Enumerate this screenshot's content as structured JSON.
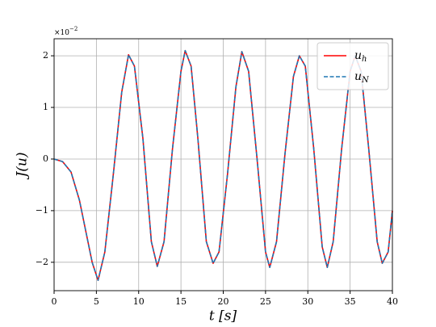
{
  "chart_data": {
    "type": "line",
    "x_label": "t [s]",
    "y_label": "J(u)",
    "y_offset_text": {
      "base": "×10",
      "exponent": "−2"
    },
    "x": [
      0,
      1,
      2,
      3,
      4,
      4.5,
      5.2,
      6,
      7,
      8,
      8.8,
      9.5,
      10.5,
      11.5,
      12.2,
      13,
      14,
      15,
      15.5,
      16.2,
      17,
      18,
      18.8,
      19.5,
      20.5,
      21.5,
      22.2,
      23,
      24,
      25,
      25.5,
      26.3,
      27.3,
      28.3,
      29,
      29.7,
      30.7,
      31.7,
      32.3,
      33,
      34,
      35,
      35.6,
      36.3,
      37.2,
      38.2,
      38.8,
      39.5,
      40
    ],
    "series": [
      {
        "name": "u_h",
        "color": "#ff0000",
        "dashed": false,
        "values": [
          0,
          -0.05,
          -0.25,
          -0.8,
          -1.6,
          -2.0,
          -2.35,
          -1.8,
          -0.3,
          1.3,
          2.02,
          1.8,
          0.4,
          -1.6,
          -2.08,
          -1.6,
          0.2,
          1.7,
          2.1,
          1.8,
          0.4,
          -1.6,
          -2.02,
          -1.8,
          -0.3,
          1.4,
          2.08,
          1.7,
          0.0,
          -1.8,
          -2.1,
          -1.6,
          0.1,
          1.6,
          2.0,
          1.8,
          0.2,
          -1.7,
          -2.1,
          -1.6,
          0.2,
          1.7,
          2.0,
          1.7,
          0.2,
          -1.6,
          -2.02,
          -1.8,
          -1.0
        ]
      },
      {
        "name": "u_N",
        "color": "#1f77b4",
        "dashed": true,
        "values": [
          0,
          -0.05,
          -0.25,
          -0.8,
          -1.6,
          -2.0,
          -2.35,
          -1.8,
          -0.3,
          1.3,
          2.02,
          1.8,
          0.4,
          -1.6,
          -2.08,
          -1.6,
          0.2,
          1.7,
          2.1,
          1.8,
          0.4,
          -1.6,
          -2.02,
          -1.8,
          -0.3,
          1.4,
          2.08,
          1.7,
          0.0,
          -1.8,
          -2.1,
          -1.6,
          0.1,
          1.6,
          2.0,
          1.8,
          0.2,
          -1.7,
          -2.1,
          -1.6,
          0.2,
          1.7,
          2.0,
          1.7,
          0.2,
          -1.6,
          -2.02,
          -1.8,
          -1.0
        ]
      }
    ],
    "xlim": [
      0,
      40
    ],
    "xticks": [
      0,
      5,
      10,
      15,
      20,
      25,
      30,
      35,
      40
    ],
    "ylim": [
      -2.55,
      2.33
    ],
    "yticks": [
      -2,
      -1,
      0,
      1,
      2
    ],
    "grid": true,
    "legend": "upper-right"
  }
}
